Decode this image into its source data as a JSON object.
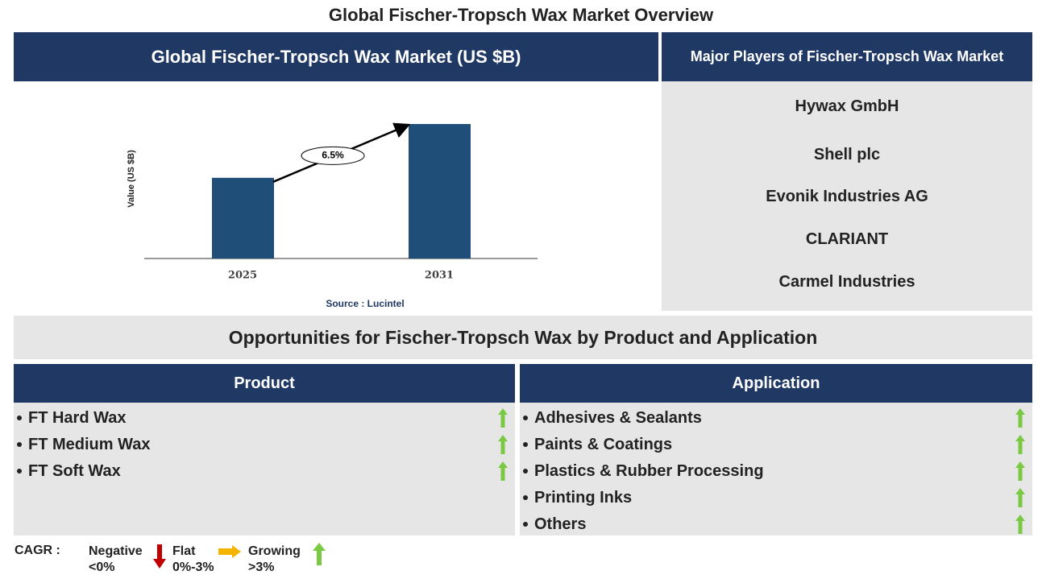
{
  "title": "Global Fischer-Tropsch Wax Market Overview",
  "chart_panel": {
    "header": "Global Fischer-Tropsch Wax Market (US $B)",
    "source": "Source : Lucintel"
  },
  "chart_data": {
    "type": "bar",
    "y_label": "Value (US $B)",
    "categories": [
      "2025",
      "2031"
    ],
    "values": [
      0.6,
      1.0
    ],
    "color": "#1f4e79",
    "ylim": [
      0,
      1.0
    ],
    "annotation": "6.5%"
  },
  "players": {
    "header": "Major Players of Fischer-Tropsch Wax Market",
    "items": [
      "Hywax GmbH",
      "Shell plc",
      "Evonik Industries AG",
      "CLARIANT",
      "Carmel Industries"
    ]
  },
  "opportunities": {
    "title": "Opportunities for Fischer-Tropsch Wax by Product and Application",
    "product": {
      "header": "Product",
      "items": [
        "FT Hard Wax",
        "FT Medium Wax",
        "FT Soft Wax"
      ]
    },
    "application": {
      "header": "Application",
      "items": [
        "Adhesives & Sealants",
        "Paints & Coatings",
        "Plastics & Rubber Processing",
        "Printing Inks",
        "Others"
      ]
    }
  },
  "legend": {
    "label": "CAGR :",
    "items": [
      {
        "name": "Negative",
        "range": "<0%"
      },
      {
        "name": "Flat",
        "range": "0%-3%"
      },
      {
        "name": "Growing",
        "range": ">3%"
      }
    ]
  }
}
